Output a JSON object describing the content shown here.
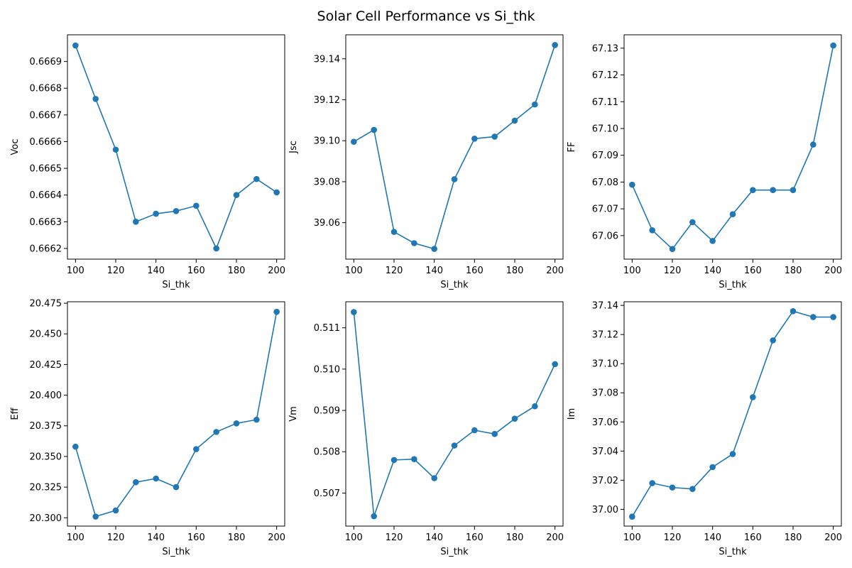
{
  "figure": {
    "title": "Solar Cell Performance vs Si_thk",
    "line_color": "#1f77b4"
  },
  "chart_data": [
    {
      "type": "line",
      "xlabel": "Si_thk",
      "ylabel": "Voc",
      "x": [
        100,
        110,
        120,
        130,
        140,
        150,
        160,
        170,
        180,
        190,
        200
      ],
      "series": [
        {
          "values": [
            0.66696,
            0.66676,
            0.66657,
            0.6663,
            0.66633,
            0.66634,
            0.66636,
            0.6662,
            0.6664,
            0.66646,
            0.66641
          ]
        }
      ],
      "xlim": [
        96,
        204
      ],
      "ylim": [
        0.66616,
        0.667
      ],
      "xticks": [
        100,
        120,
        140,
        160,
        180,
        200
      ],
      "yticks": [
        0.6662,
        0.6663,
        0.6664,
        0.6665,
        0.6666,
        0.6667,
        0.6668,
        0.6669
      ],
      "ytick_labels": [
        "0.6662",
        "0.6663",
        "0.6664",
        "0.6665",
        "0.6666",
        "0.6667",
        "0.6668",
        "0.6669"
      ],
      "grid": false
    },
    {
      "type": "line",
      "xlabel": "Si_thk",
      "ylabel": "Jsc",
      "x": [
        100,
        110,
        120,
        130,
        140,
        150,
        160,
        170,
        180,
        190,
        200
      ],
      "series": [
        {
          "values": [
            39.0995,
            39.1053,
            39.0555,
            39.05,
            39.0472,
            39.0812,
            39.101,
            39.102,
            39.1098,
            39.1177,
            39.1467
          ]
        }
      ],
      "xlim": [
        96,
        204
      ],
      "ylim": [
        39.0422,
        39.1517
      ],
      "xticks": [
        100,
        120,
        140,
        160,
        180,
        200
      ],
      "yticks": [
        39.06,
        39.08,
        39.1,
        39.12,
        39.14
      ],
      "ytick_labels": [
        "39.06",
        "39.08",
        "39.10",
        "39.12",
        "39.14"
      ],
      "grid": false
    },
    {
      "type": "line",
      "xlabel": "Si_thk",
      "ylabel": "FF",
      "x": [
        100,
        110,
        120,
        130,
        140,
        150,
        160,
        170,
        180,
        190,
        200
      ],
      "series": [
        {
          "values": [
            67.079,
            67.062,
            67.055,
            67.065,
            67.058,
            67.068,
            67.077,
            67.077,
            67.077,
            67.094,
            67.131
          ]
        }
      ],
      "xlim": [
        96,
        204
      ],
      "ylim": [
        67.0512,
        67.135
      ],
      "xticks": [
        100,
        120,
        140,
        160,
        180,
        200
      ],
      "yticks": [
        67.06,
        67.07,
        67.08,
        67.09,
        67.1,
        67.11,
        67.12,
        67.13
      ],
      "ytick_labels": [
        "67.06",
        "67.07",
        "67.08",
        "67.09",
        "67.10",
        "67.11",
        "67.12",
        "67.13"
      ],
      "grid": false
    },
    {
      "type": "line",
      "xlabel": "Si_thk",
      "ylabel": "Eff",
      "x": [
        100,
        110,
        120,
        130,
        140,
        150,
        160,
        170,
        180,
        190,
        200
      ],
      "series": [
        {
          "values": [
            20.358,
            20.301,
            20.306,
            20.329,
            20.332,
            20.325,
            20.356,
            20.37,
            20.377,
            20.38,
            20.468
          ]
        }
      ],
      "xlim": [
        96,
        204
      ],
      "ylim": [
        20.2932,
        20.4762
      ],
      "xticks": [
        100,
        120,
        140,
        160,
        180,
        200
      ],
      "yticks": [
        20.3,
        20.325,
        20.35,
        20.375,
        20.4,
        20.425,
        20.45,
        20.475
      ],
      "ytick_labels": [
        "20.300",
        "20.325",
        "20.350",
        "20.375",
        "20.400",
        "20.425",
        "20.450",
        "20.475"
      ],
      "grid": false
    },
    {
      "type": "line",
      "xlabel": "Si_thk",
      "ylabel": "Vm",
      "x": [
        100,
        110,
        120,
        130,
        140,
        150,
        160,
        170,
        180,
        190,
        200
      ],
      "series": [
        {
          "values": [
            0.51138,
            0.50644,
            0.5078,
            0.50782,
            0.50736,
            0.50815,
            0.50852,
            0.50843,
            0.5088,
            0.5091,
            0.51012
          ]
        }
      ],
      "xlim": [
        96,
        204
      ],
      "ylim": [
        0.5062,
        0.51163
      ],
      "xticks": [
        100,
        120,
        140,
        160,
        180,
        200
      ],
      "yticks": [
        0.507,
        0.508,
        0.509,
        0.51,
        0.511
      ],
      "ytick_labels": [
        "0.507",
        "0.508",
        "0.509",
        "0.510",
        "0.511"
      ],
      "grid": false
    },
    {
      "type": "line",
      "xlabel": "Si_thk",
      "ylabel": "Im",
      "x": [
        100,
        110,
        120,
        130,
        140,
        150,
        160,
        170,
        180,
        190,
        200
      ],
      "series": [
        {
          "values": [
            36.995,
            37.018,
            37.015,
            37.014,
            37.029,
            37.038,
            37.077,
            37.116,
            37.136,
            37.132,
            37.132
          ]
        }
      ],
      "xlim": [
        96,
        204
      ],
      "ylim": [
        36.9885,
        37.1425
      ],
      "xticks": [
        100,
        120,
        140,
        160,
        180,
        200
      ],
      "yticks": [
        37.0,
        37.02,
        37.04,
        37.06,
        37.08,
        37.1,
        37.12,
        37.14
      ],
      "ytick_labels": [
        "37.00",
        "37.02",
        "37.04",
        "37.06",
        "37.08",
        "37.10",
        "37.12",
        "37.14"
      ],
      "grid": false
    }
  ]
}
